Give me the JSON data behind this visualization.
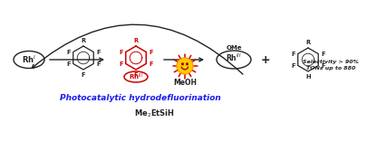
{
  "bg_color": "#ffffff",
  "rh1_label": "Rh$^{I}$",
  "rh3_label": "Rh$^{III}$",
  "rh3_ome_label": "Rh$^{III}$",
  "ome_label": "OMe",
  "meoh_label": "MeOH",
  "photocatalytic_label": "Photocatalytic hydrodefluorination",
  "silane_label": "Me$_2$EtSiH",
  "selectivity_line1": "Selectivity > 90%",
  "selectivity_line2": "TONs up to 880",
  "plus_label": "+",
  "red_color": "#cc0000",
  "blue_color": "#1a1aee",
  "black_color": "#222222",
  "yellow_color": "#ffcc00",
  "sun_red": "#ee2200",
  "orange_fill": "#ff9900"
}
